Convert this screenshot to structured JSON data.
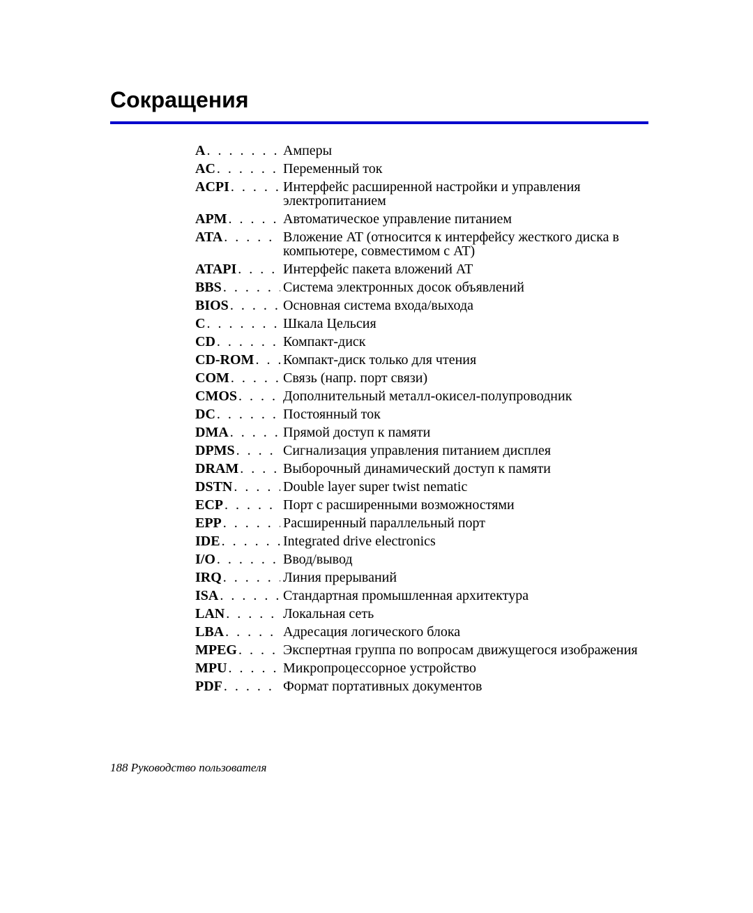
{
  "title": "Сокращения",
  "rule_color": "#0000cc",
  "footer": "188  Руководство пользователя",
  "entries": [
    {
      "abbr": "A",
      "def": "Амперы"
    },
    {
      "abbr": "AC",
      "def": "Переменный ток"
    },
    {
      "abbr": "ACPI",
      "def": "Интерфейс расширенной настройки и управления электропитанием"
    },
    {
      "abbr": "APM",
      "def": "Автоматическое управление питанием"
    },
    {
      "abbr": "ATA",
      "def": "Вложение AT (относится к интерфейсу жесткого диска в компьютере, совместимом с AT)"
    },
    {
      "abbr": "ATAPI",
      "def": "Интерфейс пакета вложений AT"
    },
    {
      "abbr": "BBS",
      "def": "Система электронных досок объявлений"
    },
    {
      "abbr": "BIOS",
      "def": "Основная система входа/выхода"
    },
    {
      "abbr": "C",
      "def": "Шкала Цельсия"
    },
    {
      "abbr": "CD",
      "def": "Компакт-диск"
    },
    {
      "abbr": "CD-ROM",
      "def": "Компакт-диск только для чтения"
    },
    {
      "abbr": "COM",
      "def": "Связь (напр. порт связи)"
    },
    {
      "abbr": "CMOS",
      "def": "Дополнительный металл-окисел-полупроводник"
    },
    {
      "abbr": "DC",
      "def": "Постоянный ток"
    },
    {
      "abbr": "DMA",
      "def": "Прямой доступ к памяти"
    },
    {
      "abbr": "DPMS",
      "def": "Сигнализация управления питанием дисплея"
    },
    {
      "abbr": "DRAM",
      "def": "Выборочный динамический доступ к памяти"
    },
    {
      "abbr": "DSTN",
      "def": "Double layer super twist nematic"
    },
    {
      "abbr": "ECP",
      "def": "Порт с расширенными возможностями"
    },
    {
      "abbr": "EPP",
      "def": "Расширенный параллельный порт"
    },
    {
      "abbr": "IDE",
      "def": "Integrated drive electronics"
    },
    {
      "abbr": "I/O",
      "def": "Ввод/вывод"
    },
    {
      "abbr": "IRQ",
      "def": "Линия прерываний"
    },
    {
      "abbr": "ISA",
      "def": "Стандартная промышленная архитектура"
    },
    {
      "abbr": "LAN",
      "def": "Локальная сеть"
    },
    {
      "abbr": "LBA",
      "def": "Адресация логического блока"
    },
    {
      "abbr": "MPEG",
      "def": "Экспертная группа по вопросам движущегося изображения"
    },
    {
      "abbr": "MPU",
      "def": "Микропроцессорное устройство"
    },
    {
      "abbr": "PDF",
      "def": "Формат портативных документов"
    }
  ]
}
